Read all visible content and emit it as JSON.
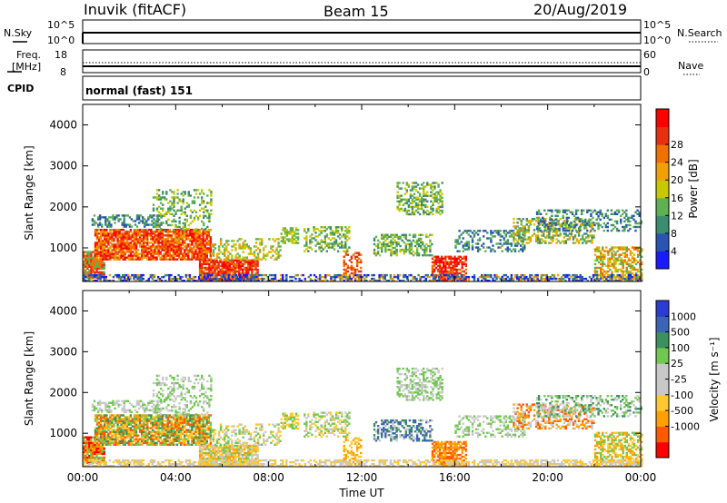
{
  "header": {
    "station": "Inuvik (fitACF)",
    "beam": "Beam 15",
    "date": "20/Aug/2019"
  },
  "noise_panel": {
    "left_label": "N.Sky",
    "right_label": "N.Search",
    "tick_top": "10^5",
    "tick_bottom": "10^0"
  },
  "freq_panel": {
    "left_label_line1": "Freq.",
    "left_label_line2": "[MHz]",
    "right_label": "Nave",
    "left_tick_top": "18",
    "left_tick_bottom": "8",
    "right_tick_top": "60",
    "right_tick_bottom": "0"
  },
  "cpid": {
    "label": "CPID",
    "value": "normal (fast) 151"
  },
  "colors": {
    "power_scale": [
      "#1a1aff",
      "#2a54b4",
      "#3c8c70",
      "#5fb050",
      "#c8c800",
      "#f0a000",
      "#f07000",
      "#e83010",
      "#ff0000"
    ],
    "velocity_scale": [
      "#ff0000",
      "#ff5a00",
      "#ffa000",
      "#ffc830",
      "#c8c8c8",
      "#c8c8c8",
      "#70c850",
      "#3c9060",
      "#3c64b4",
      "#2a3cd2"
    ]
  },
  "chart_data": [
    {
      "type": "heatmap",
      "name": "power",
      "ylabel": "Slant Range [km]",
      "ylim": [
        180,
        4500
      ],
      "xlim": [
        0,
        24
      ],
      "y_ticks": [
        "1000",
        "2000",
        "3000",
        "4000"
      ],
      "y_tick_values": [
        1000,
        2000,
        3000,
        4000
      ],
      "colorbar_label": "Power [dB]",
      "colorbar_ticks": [
        "4",
        "8",
        "12",
        "16",
        "20",
        "24",
        "28"
      ],
      "colorbar_range": [
        0,
        30
      ]
    },
    {
      "type": "heatmap",
      "name": "velocity",
      "ylabel": "Slant Range [km]",
      "xlabel": "Time UT",
      "ylim": [
        180,
        4500
      ],
      "xlim": [
        0,
        24
      ],
      "x_ticks": [
        "00:00",
        "04:00",
        "08:00",
        "12:00",
        "16:00",
        "20:00",
        "00:00"
      ],
      "x_tick_values": [
        0,
        4,
        8,
        12,
        16,
        20,
        24
      ],
      "y_ticks": [
        "1000",
        "2000",
        "3000",
        "4000"
      ],
      "y_tick_values": [
        1000,
        2000,
        3000,
        4000
      ],
      "colorbar_label": "Velocity [m s⁻¹]",
      "colorbar_ticks": [
        "1000",
        "500",
        "100",
        "25",
        "-25",
        "-100",
        "-500",
        "-1000"
      ]
    }
  ]
}
